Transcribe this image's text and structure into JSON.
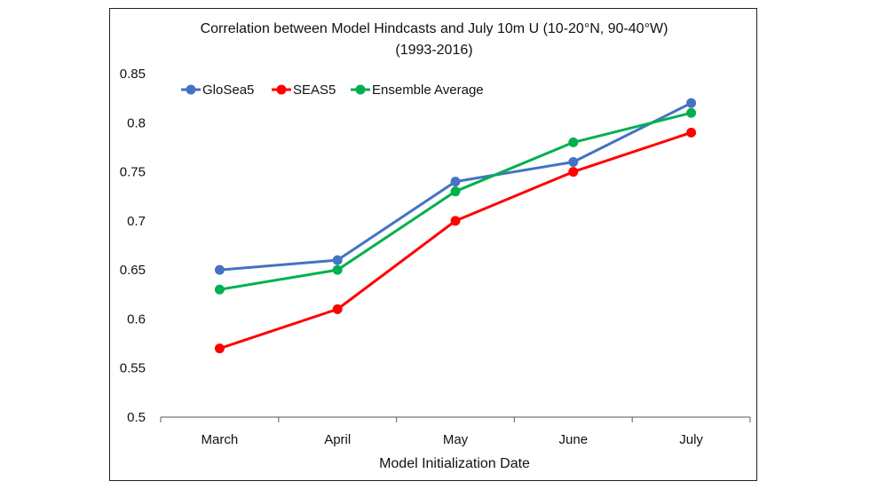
{
  "chart_data": {
    "type": "line",
    "title": "Correlation between Model Hindcasts and July 10m U (10-20°N, 90-40°W)",
    "subtitle": "(1993-2016)",
    "xlabel": "Model Initialization Date",
    "ylabel": "",
    "categories": [
      "March",
      "April",
      "May",
      "June",
      "July"
    ],
    "ylim": [
      0.5,
      0.85
    ],
    "yticks": [
      "0.5",
      "0.55",
      "0.6",
      "0.65",
      "0.7",
      "0.75",
      "0.8",
      "0.85"
    ],
    "grid": false,
    "legend_position": "top-left",
    "series": [
      {
        "name": "GloSea5",
        "color": "#4472C4",
        "values": [
          0.65,
          0.66,
          0.74,
          0.76,
          0.82
        ]
      },
      {
        "name": "SEAS5",
        "color": "#FF0000",
        "values": [
          0.57,
          0.61,
          0.7,
          0.75,
          0.79
        ]
      },
      {
        "name": "Ensemble Average",
        "color": "#00B050",
        "values": [
          0.63,
          0.65,
          0.73,
          0.78,
          0.81
        ]
      }
    ]
  }
}
